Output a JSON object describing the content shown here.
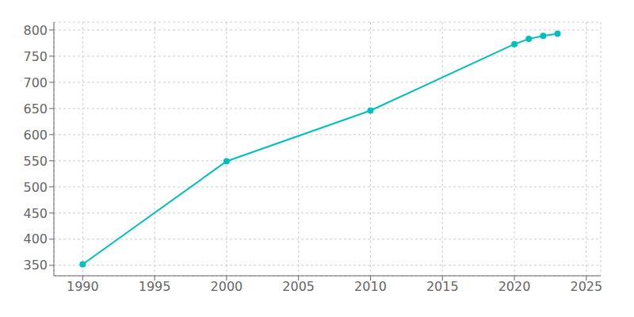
{
  "chart_data": {
    "type": "line",
    "x": [
      1990,
      2000,
      2010,
      2020,
      2021,
      2022,
      2023
    ],
    "values": [
      352,
      549,
      646,
      773,
      783,
      789,
      793
    ],
    "color": "#00BFBF",
    "marker": "circle",
    "xlim": [
      1988,
      2026
    ],
    "ylim": [
      330,
      815
    ],
    "xticks": [
      1990,
      1995,
      2000,
      2005,
      2010,
      2015,
      2020,
      2025
    ],
    "yticks": [
      350,
      400,
      450,
      500,
      550,
      600,
      650,
      700,
      750,
      800
    ],
    "grid": true
  }
}
